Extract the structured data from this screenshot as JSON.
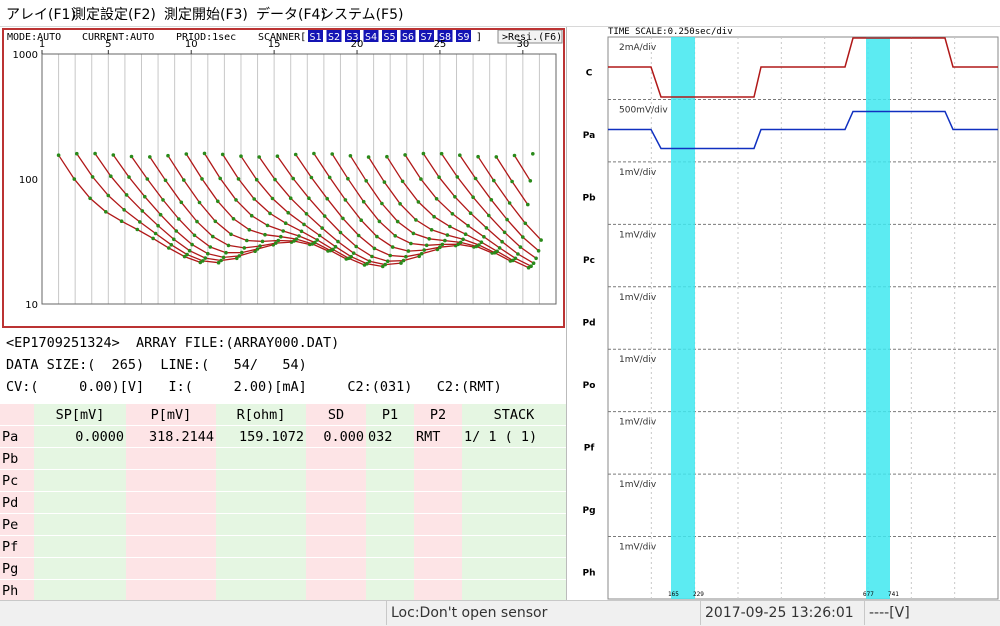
{
  "menu": [
    "アレイ(F1)",
    "測定設定(F2)",
    "測定開始(F3)",
    "データ(F4)",
    "システム(F5)"
  ],
  "chart_header": {
    "mode": "MODE:AUTO",
    "current": "CURRENT:AUTO",
    "period": "PRIOD:1sec",
    "scanner": "SCANNER[",
    "scanners": [
      "S1",
      "S2",
      "S3",
      "S4",
      "S5",
      "S6",
      "S7",
      "S8",
      "S9"
    ],
    "scanner_end": "]",
    "resi_button": ">Resi.(F6)"
  },
  "chart_data": {
    "type": "line",
    "x_ticks": [
      "1",
      "5",
      "10",
      "15",
      "20",
      "25",
      "30"
    ],
    "x_range": [
      1,
      32
    ],
    "y_scale": "log",
    "y_range": [
      10,
      1000
    ],
    "y_ticks": [
      "1000",
      "100",
      "10"
    ],
    "grid": true,
    "curve_count": 27,
    "series_color": "#b01818",
    "marker_color": "#2a8a1a"
  },
  "info": {
    "line1": "<EP1709251324>  ARRAY FILE:(ARRAY000.DAT)",
    "line2": "DATA SIZE:(  265)  LINE:(   54/   54)",
    "line3": "CV:(     0.00)[V]   I:(     2.00)[mA]     C2:(031)   C2:(RMT)"
  },
  "table": {
    "headers": [
      "",
      "SP[mV]",
      "P[mV]",
      "R[ohm]",
      "SD",
      "P1",
      "P2",
      "STACK"
    ],
    "rows": [
      [
        "Pa",
        "0.0000",
        "318.2144",
        "159.1072",
        "0.000",
        "032",
        "RMT",
        "1/ 1  ( 1)"
      ],
      [
        "Pb",
        "",
        "",
        "",
        "",
        "",
        "",
        ""
      ],
      [
        "Pc",
        "",
        "",
        "",
        "",
        "",
        "",
        ""
      ],
      [
        "Pd",
        "",
        "",
        "",
        "",
        "",
        "",
        ""
      ],
      [
        "Pe",
        "",
        "",
        "",
        "",
        "",
        "",
        ""
      ],
      [
        "Pf",
        "",
        "",
        "",
        "",
        "",
        "",
        ""
      ],
      [
        "Pg",
        "",
        "",
        "",
        "",
        "",
        "",
        ""
      ],
      [
        "Ph",
        "",
        "",
        "",
        "",
        "",
        "",
        ""
      ]
    ]
  },
  "waveform": {
    "time_scale": "TIME SCALE:0.250sec/div",
    "channels": [
      {
        "name": "C",
        "scale": "2mA/div",
        "color": "#b01818"
      },
      {
        "name": "Pa",
        "scale": "500mV/div",
        "color": "#1030c0"
      },
      {
        "name": "Pb",
        "scale": "1mV/div",
        "color": ""
      },
      {
        "name": "Pc",
        "scale": "1mV/div",
        "color": ""
      },
      {
        "name": "Pd",
        "scale": "1mV/div",
        "color": ""
      },
      {
        "name": "Po",
        "scale": "1mV/div",
        "color": ""
      },
      {
        "name": "Pf",
        "scale": "1mV/div",
        "color": ""
      },
      {
        "name": "Pg",
        "scale": "1mV/div",
        "color": ""
      },
      {
        "name": "Ph",
        "scale": "1mV/div",
        "color": ""
      }
    ],
    "marker1": {
      "start": "165",
      "end": "229"
    },
    "marker2": {
      "start": "677",
      "end": "741"
    },
    "marker_color": "#40e8f0"
  },
  "status": {
    "location": "Loc:Don't open sensor",
    "datetime": "2017-09-25 13:26:01",
    "voltage": "----[V]"
  }
}
